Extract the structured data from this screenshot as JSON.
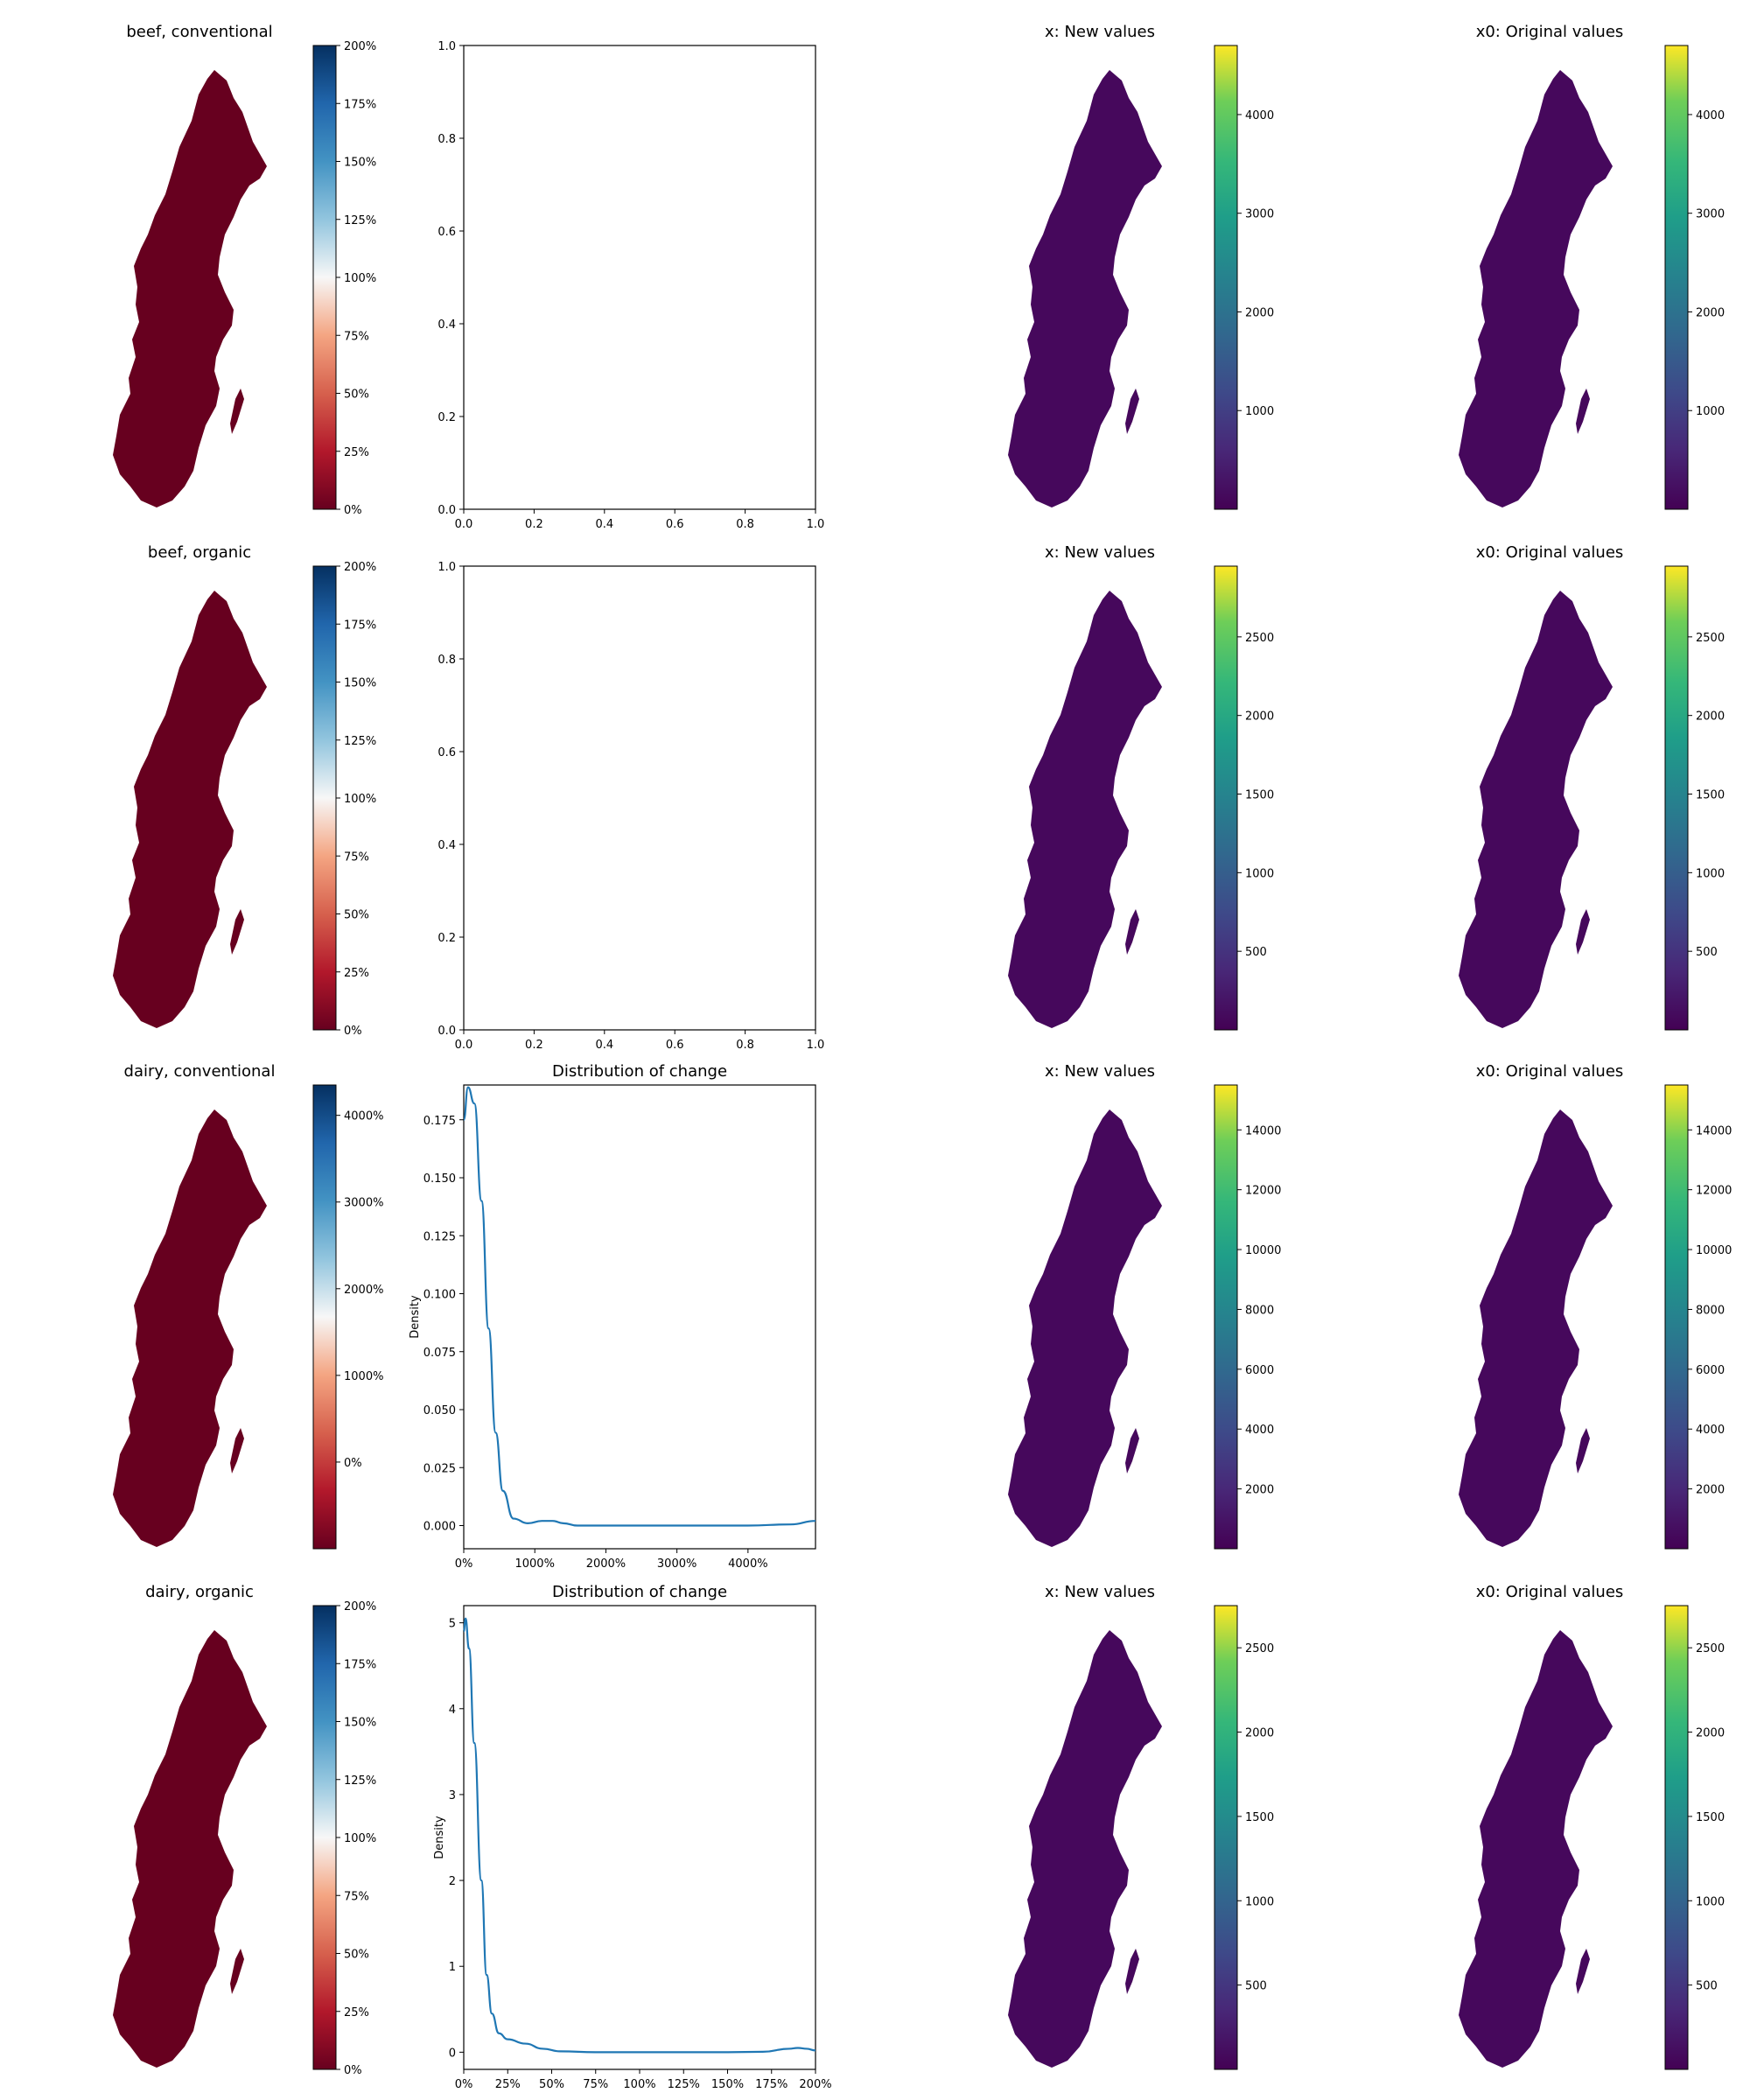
{
  "figure": {
    "rows": [
      {
        "map_title": "beef, conventional",
        "change_colorbar": {
          "ticks": [
            "0%",
            "25%",
            "50%",
            "75%",
            "100%",
            "125%",
            "150%",
            "175%",
            "200%"
          ]
        },
        "change_map": {
          "scheme": "uniform-low"
        },
        "dist": {
          "type": "empty",
          "xticks": [
            "0.0",
            "0.2",
            "0.4",
            "0.6",
            "0.8",
            "1.0"
          ],
          "yticks": [
            "0.0",
            "0.2",
            "0.4",
            "0.6",
            "0.8",
            "1.0"
          ]
        },
        "new_title": "x: New values",
        "new_map": {
          "scheme": "uniform-low"
        },
        "orig_title": "x0: Original values",
        "orig_map": {
          "scheme": "hotspots-south"
        },
        "viridis_ticks": [
          "1000",
          "2000",
          "3000",
          "4000"
        ],
        "viridis_range": [
          0,
          4700
        ]
      },
      {
        "map_title": "beef, organic",
        "change_colorbar": {
          "ticks": [
            "0%",
            "25%",
            "50%",
            "75%",
            "100%",
            "125%",
            "150%",
            "175%",
            "200%"
          ]
        },
        "change_map": {
          "scheme": "uniform-low"
        },
        "dist": {
          "type": "empty",
          "xticks": [
            "0.0",
            "0.2",
            "0.4",
            "0.6",
            "0.8",
            "1.0"
          ],
          "yticks": [
            "0.0",
            "0.2",
            "0.4",
            "0.6",
            "0.8",
            "1.0"
          ]
        },
        "new_title": "x: New values",
        "new_map": {
          "scheme": "uniform-low"
        },
        "orig_title": "x0: Original values",
        "orig_map": {
          "scheme": "hotspots-south"
        },
        "viridis_ticks": [
          "500",
          "1000",
          "1500",
          "2000",
          "2500"
        ],
        "viridis_range": [
          0,
          2950
        ]
      },
      {
        "map_title": "dairy, conventional",
        "change_colorbar": {
          "ticks": [
            "0%",
            "1000%",
            "2000%",
            "3000%",
            "4000%"
          ]
        },
        "change_map": {
          "scheme": "dairy-conv"
        },
        "dist": {
          "type": "line",
          "title": "Distribution of change",
          "ylabel": "Density",
          "xticks": [
            "0%",
            "1000%",
            "2000%",
            "3000%",
            "4000%"
          ],
          "yticks": [
            "0.000",
            "0.025",
            "0.050",
            "0.075",
            "0.100",
            "0.125",
            "0.150",
            "0.175"
          ]
        },
        "new_title": "x: New values",
        "new_map": {
          "scheme": "mixed-mid"
        },
        "orig_title": "x0: Original values",
        "orig_map": {
          "scheme": "mixed-mid"
        },
        "viridis_ticks": [
          "2000",
          "4000",
          "6000",
          "8000",
          "10000",
          "12000",
          "14000"
        ],
        "viridis_range": [
          0,
          15500
        ]
      },
      {
        "map_title": "dairy, organic",
        "change_colorbar": {
          "ticks": [
            "0%",
            "25%",
            "50%",
            "75%",
            "100%",
            "125%",
            "150%",
            "175%",
            "200%"
          ]
        },
        "change_map": {
          "scheme": "dairy-org"
        },
        "dist": {
          "type": "line",
          "title": "Distribution of change",
          "ylabel": "Density",
          "xticks": [
            "0%",
            "25%",
            "50%",
            "75%",
            "100%",
            "125%",
            "150%",
            "175%",
            "200%"
          ],
          "yticks": [
            "0",
            "1",
            "2",
            "3",
            "4",
            "5"
          ]
        },
        "new_title": "x: New values",
        "new_map": {
          "scheme": "uniform-low"
        },
        "orig_title": "x0: Original values",
        "orig_map": {
          "scheme": "hotspots-south"
        },
        "viridis_ticks": [
          "500",
          "1000",
          "1500",
          "2000",
          "2500"
        ],
        "viridis_range": [
          0,
          2750
        ]
      }
    ]
  },
  "chart_data": [
    {
      "type": "line",
      "title": "Distribution of change",
      "ylabel": "Density",
      "xlim": [
        0,
        4950
      ],
      "ylim": [
        -0.01,
        0.19
      ],
      "x": [
        0,
        60,
        150,
        250,
        350,
        450,
        550,
        700,
        900,
        1100,
        1250,
        1400,
        1600,
        2000,
        3000,
        4000,
        4600,
        4950
      ],
      "y": [
        0.175,
        0.189,
        0.182,
        0.14,
        0.085,
        0.04,
        0.015,
        0.003,
        0.001,
        0.002,
        0.002,
        0.001,
        0.0,
        0.0,
        0.0,
        0.0,
        0.0005,
        0.002
      ]
    },
    {
      "type": "line",
      "title": "Distribution of change",
      "ylabel": "Density",
      "xlim": [
        0,
        200
      ],
      "ylim": [
        -0.2,
        5.2
      ],
      "x": [
        0,
        1,
        3,
        6,
        10,
        13,
        16,
        20,
        25,
        35,
        45,
        55,
        75,
        100,
        150,
        170,
        185,
        190,
        195,
        200
      ],
      "y": [
        4.9,
        5.05,
        4.7,
        3.6,
        2.0,
        0.9,
        0.45,
        0.22,
        0.15,
        0.1,
        0.04,
        0.01,
        0.0,
        0.0,
        0.0,
        0.005,
        0.04,
        0.05,
        0.04,
        0.02
      ]
    }
  ]
}
